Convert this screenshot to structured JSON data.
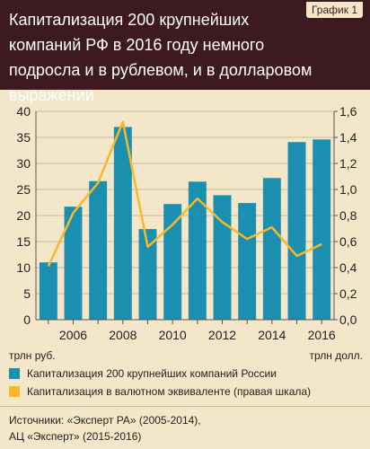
{
  "header": {
    "title": "Капитализация 200 крупнейших компаний РФ в 2016 году немного подросла и в рублевом, и в долларовом выражении",
    "badge": "График 1"
  },
  "units": {
    "left": "трлн руб.",
    "right": "трлн долл."
  },
  "legend": [
    {
      "label": "Капитализация 200 крупнейших компаний России",
      "color": "#1b8fb0"
    },
    {
      "label": "Капитализация в валютном эквиваленте (правая шкала)",
      "color": "#f7b928"
    }
  ],
  "source": {
    "line1": "Источники: «Эксперт РА» (2005-2014),",
    "line2": "АЦ «Эксперт» (2015-2016)"
  },
  "chart_data": {
    "type": "bar",
    "x": [
      2005,
      2006,
      2007,
      2008,
      2009,
      2010,
      2011,
      2012,
      2013,
      2014,
      2015,
      2016
    ],
    "x_tick_labels": [
      "2006",
      "2008",
      "2010",
      "2012",
      "2014",
      "2016"
    ],
    "series": [
      {
        "axis": "left",
        "type": "bar",
        "color": "#1b8fb0",
        "values": [
          11.0,
          21.7,
          26.6,
          37.0,
          17.4,
          22.2,
          26.5,
          23.9,
          22.4,
          27.2,
          34.1,
          34.6
        ]
      },
      {
        "axis": "right",
        "type": "line",
        "color": "#f7b928",
        "values": [
          0.41,
          0.82,
          1.05,
          1.52,
          0.56,
          0.73,
          0.93,
          0.75,
          0.62,
          0.71,
          0.49,
          0.58
        ]
      }
    ],
    "y_left": {
      "min": 0,
      "max": 40,
      "ticks": [
        "0",
        "5",
        "10",
        "15",
        "20",
        "25",
        "30",
        "35",
        "40"
      ]
    },
    "y_right": {
      "min": 0,
      "max": 1.6,
      "ticks": [
        "0,0",
        "0,2",
        "0,4",
        "0,6",
        "0,8",
        "1,0",
        "1,2",
        "1,4",
        "1,6"
      ]
    }
  }
}
